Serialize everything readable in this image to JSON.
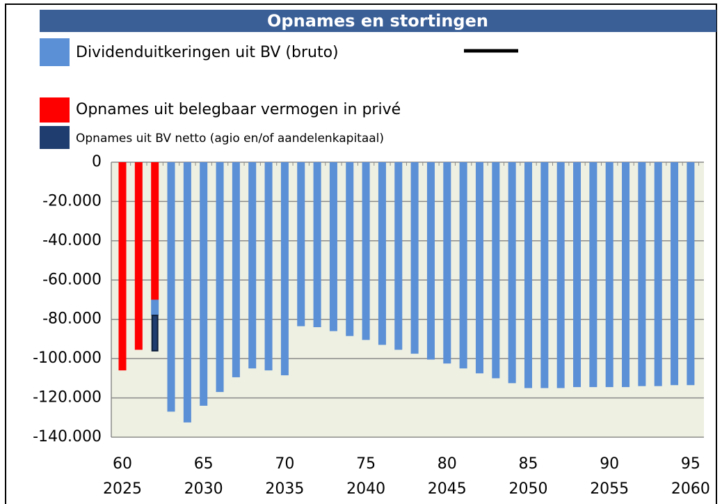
{
  "chart_data": {
    "type": "bar",
    "stacked": true,
    "title": "Opnames en stortingen",
    "categories": [
      "60",
      null,
      null,
      null,
      null,
      "65",
      null,
      null,
      null,
      null,
      "70",
      null,
      null,
      null,
      null,
      "75",
      null,
      null,
      null,
      null,
      "80",
      null,
      null,
      null,
      null,
      "85",
      null,
      null,
      null,
      null,
      "90",
      null,
      null,
      null,
      null,
      "95"
    ],
    "years": [
      "2025",
      null,
      null,
      null,
      null,
      "2030",
      null,
      null,
      null,
      null,
      "2035",
      null,
      null,
      null,
      null,
      "2040",
      null,
      null,
      null,
      null,
      "2045",
      null,
      null,
      null,
      null,
      "2050",
      null,
      null,
      null,
      null,
      "2055",
      null,
      null,
      null,
      null,
      "2060"
    ],
    "series": [
      {
        "name": "Opnames uit belegbaar vermogen in privé",
        "color": "#ff0000",
        "values": [
          -106000,
          -95500,
          -70000,
          null,
          null,
          null,
          null,
          null,
          null,
          null,
          null,
          null,
          null,
          null,
          null,
          null,
          null,
          null,
          null,
          null,
          null,
          null,
          null,
          null,
          null,
          null,
          null,
          null,
          null,
          null,
          null,
          null,
          null,
          null,
          null,
          null
        ]
      },
      {
        "name": "Dividenduitkeringen uit BV (bruto)",
        "color": "#5b8fd6",
        "values": [
          null,
          null,
          -8000,
          -127000,
          -132500,
          -124000,
          -117000,
          -109500,
          -105000,
          -106000,
          -108500,
          -83500,
          -84000,
          -86000,
          -88500,
          -90500,
          -93000,
          -95500,
          -97500,
          -100500,
          -102500,
          -105000,
          -107500,
          -110000,
          -112500,
          -115000,
          -115000,
          -115000,
          -114500,
          -114500,
          -114500,
          -114500,
          -114000,
          -114000,
          -113500,
          -113500
        ]
      },
      {
        "name": "Opnames uit BV netto (agio en/of aandelenkapitaal)",
        "color": "#1f3d6e",
        "values": [
          null,
          null,
          -18000,
          null,
          null,
          null,
          null,
          null,
          null,
          null,
          null,
          null,
          null,
          null,
          null,
          null,
          null,
          null,
          null,
          null,
          null,
          null,
          null,
          null,
          null,
          null,
          null,
          null,
          null,
          null,
          null,
          null,
          null,
          null,
          null,
          null
        ]
      }
    ],
    "ylim": [
      -140000,
      0
    ],
    "yticks": [
      0,
      {
        "value": -20000,
        "label": "-20.000"
      },
      {
        "value": -40000,
        "label": "-40.000"
      },
      {
        "value": -60000,
        "label": "-60.000"
      },
      {
        "value": -80000,
        "label": "-80.000"
      },
      {
        "value": -100000,
        "label": "-100.000"
      },
      {
        "value": -120000,
        "label": "-120.000"
      },
      {
        "value": -140000,
        "label": "-140.000"
      }
    ],
    "grid": true
  }
}
